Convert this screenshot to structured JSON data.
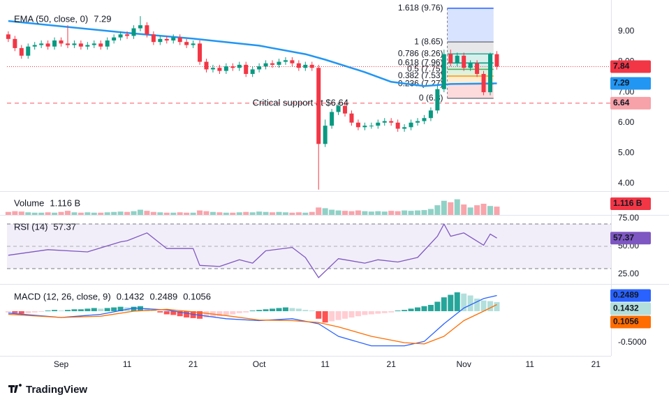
{
  "x_axis": {
    "xlim": [
      -0.2,
      91.3
    ],
    "xticks": [
      {
        "value": 8,
        "label": "Sep"
      },
      {
        "value": 18,
        "label": "11"
      },
      {
        "value": 28,
        "label": "21"
      },
      {
        "value": 38,
        "label": "Oct"
      },
      {
        "value": 48,
        "label": "11"
      },
      {
        "value": 58,
        "label": "21"
      },
      {
        "value": 69,
        "label": "Nov"
      },
      {
        "value": 79,
        "label": "11"
      },
      {
        "value": 89,
        "label": "21"
      }
    ]
  },
  "brand": "TradingView",
  "chart_data": [
    {
      "type": "candlestick",
      "x": [
        0,
        1,
        2,
        3,
        4,
        5,
        6,
        7,
        8,
        9,
        10,
        11,
        12,
        13,
        14,
        15,
        16,
        17,
        18,
        19,
        20,
        21,
        22,
        23,
        24,
        25,
        26,
        27,
        28,
        29,
        30,
        31,
        32,
        33,
        34,
        35,
        36,
        37,
        38,
        39,
        40,
        41,
        42,
        43,
        44,
        45,
        46,
        47,
        48,
        49,
        50,
        51,
        52,
        53,
        54,
        55,
        56,
        57,
        58,
        59,
        60,
        61,
        62,
        63,
        64,
        65,
        66,
        67,
        68,
        69,
        70,
        71,
        72,
        73,
        74
      ],
      "open": [
        8.9,
        8.75,
        8.45,
        8.2,
        8.5,
        8.55,
        8.6,
        8.5,
        8.7,
        8.6,
        8.55,
        8.6,
        8.5,
        8.55,
        8.6,
        8.5,
        8.7,
        8.8,
        8.9,
        8.85,
        9.1,
        9.2,
        8.9,
        8.65,
        8.75,
        8.7,
        8.8,
        8.65,
        8.55,
        8.6,
        8.0,
        7.75,
        7.8,
        7.7,
        7.85,
        7.8,
        7.9,
        7.6,
        7.75,
        7.85,
        7.95,
        7.9,
        8.0,
        8.05,
        7.95,
        7.8,
        7.9,
        7.8,
        5.3,
        5.9,
        6.35,
        6.55,
        6.3,
        6.0,
        5.85,
        5.9,
        5.9,
        6.0,
        6.05,
        6.0,
        5.8,
        5.85,
        6.0,
        6.05,
        6.15,
        6.4,
        7.1,
        8.25,
        7.95,
        8.2,
        7.8,
        7.95,
        7.6,
        7.0,
        8.25
      ],
      "high": [
        9.0,
        8.85,
        8.55,
        8.6,
        8.65,
        8.7,
        8.7,
        8.8,
        8.8,
        9.2,
        8.7,
        8.7,
        8.65,
        8.7,
        8.7,
        8.8,
        8.9,
        9.0,
        9.0,
        9.2,
        9.5,
        9.3,
        9.0,
        8.85,
        8.85,
        8.9,
        8.9,
        8.75,
        8.7,
        8.7,
        8.1,
        7.9,
        7.9,
        7.95,
        7.95,
        8.0,
        8.0,
        7.85,
        7.95,
        8.05,
        8.05,
        8.1,
        8.15,
        8.15,
        8.05,
        8.0,
        8.0,
        7.9,
        6.1,
        6.45,
        6.65,
        6.65,
        6.4,
        6.1,
        6.0,
        6.0,
        6.1,
        6.15,
        6.15,
        6.1,
        5.95,
        6.1,
        6.15,
        6.25,
        6.5,
        7.2,
        8.4,
        8.4,
        8.3,
        8.3,
        8.05,
        8.05,
        7.7,
        8.3,
        8.35
      ],
      "low": [
        8.65,
        8.35,
        8.1,
        8.1,
        8.4,
        8.45,
        8.4,
        8.4,
        8.5,
        8.45,
        8.45,
        8.4,
        8.4,
        8.45,
        8.4,
        8.4,
        8.6,
        8.7,
        8.75,
        8.75,
        9.0,
        8.8,
        8.55,
        8.55,
        8.6,
        8.6,
        8.55,
        8.45,
        8.45,
        7.9,
        7.65,
        7.65,
        7.6,
        7.6,
        7.7,
        7.7,
        7.5,
        7.5,
        7.65,
        7.75,
        7.8,
        7.8,
        7.9,
        7.85,
        7.7,
        7.7,
        7.7,
        3.8,
        5.2,
        5.8,
        6.25,
        6.2,
        5.9,
        5.75,
        5.75,
        5.8,
        5.8,
        5.9,
        5.9,
        5.7,
        5.7,
        5.75,
        5.9,
        5.95,
        6.05,
        6.3,
        7.0,
        7.85,
        7.85,
        7.7,
        7.7,
        7.5,
        6.9,
        6.9,
        7.74
      ],
      "close": [
        8.75,
        8.45,
        8.2,
        8.5,
        8.55,
        8.6,
        8.5,
        8.7,
        8.6,
        8.55,
        8.6,
        8.5,
        8.55,
        8.6,
        8.5,
        8.7,
        8.8,
        8.9,
        8.85,
        9.1,
        9.2,
        8.9,
        8.65,
        8.75,
        8.7,
        8.8,
        8.65,
        8.55,
        8.6,
        8.0,
        7.75,
        7.8,
        7.7,
        7.85,
        7.8,
        7.9,
        7.6,
        7.75,
        7.85,
        7.95,
        7.9,
        8.0,
        8.05,
        7.95,
        7.8,
        7.9,
        7.8,
        5.3,
        5.9,
        6.35,
        6.55,
        6.3,
        6.0,
        5.85,
        5.9,
        5.9,
        6.0,
        6.05,
        6.0,
        5.8,
        5.85,
        6.0,
        6.05,
        6.15,
        6.4,
        7.1,
        8.25,
        7.95,
        8.2,
        7.8,
        7.95,
        7.6,
        7.0,
        8.25,
        7.84
      ],
      "up_color": "#089981",
      "down_color": "#f23645",
      "ema": {
        "name": "EMA (50, close, 0)",
        "color": "#2196f3",
        "x": [
          0,
          18,
          28,
          38,
          45,
          48,
          54,
          58,
          63,
          67,
          74
        ],
        "values": [
          9.34,
          8.95,
          8.76,
          8.53,
          8.25,
          8.07,
          7.66,
          7.34,
          7.2,
          7.27,
          7.29
        ]
      },
      "ylim": [
        3.77,
        10.03
      ],
      "yticks": [
        {
          "value": 4,
          "label": "4.00"
        },
        {
          "value": 5,
          "label": "5.00"
        },
        {
          "value": 6,
          "label": "6.00"
        },
        {
          "value": 7,
          "label": "7.00"
        },
        {
          "value": 8,
          "label": "8.00"
        },
        {
          "value": 9,
          "label": "9.00"
        }
      ],
      "support": {
        "value": 6.64,
        "color": "#f7525f",
        "label": "Critical support at $6.64",
        "label_color": "#2962ff"
      },
      "fib_x": [
        66.5,
        73.5
      ],
      "fib_levels": [
        {
          "label": "1.618 (9.76)",
          "value": 9.76,
          "color": "#2962ff"
        },
        {
          "label": "1 (8.65)",
          "value": 8.65,
          "color": "#787b86"
        },
        {
          "label": "0.786 (8.26)",
          "value": 8.26,
          "color": "#22ab94"
        },
        {
          "label": "0.618 (7.96)",
          "value": 7.96,
          "color": "#089981"
        },
        {
          "label": "0.5 (7.75)",
          "value": 7.75,
          "color": "#4caf50"
        },
        {
          "label": "0.382 (7.53)",
          "value": 7.53,
          "color": "#ff9800"
        },
        {
          "label": "0.236 (7.27)",
          "value": 7.27,
          "color": "#f23645"
        },
        {
          "label": "0 (6.8)",
          "value": 6.8,
          "color": "#787b86"
        }
      ]
    },
    {
      "type": "bar",
      "name": "Volume",
      "values": [
        0.4,
        0.5,
        0.45,
        0.35,
        0.3,
        0.3,
        0.35,
        0.3,
        0.4,
        0.55,
        0.35,
        0.3,
        0.35,
        0.3,
        0.3,
        0.35,
        0.4,
        0.45,
        0.4,
        0.5,
        0.7,
        0.55,
        0.4,
        0.35,
        0.3,
        0.3,
        0.35,
        0.3,
        0.3,
        0.6,
        0.5,
        0.4,
        0.35,
        0.3,
        0.3,
        0.35,
        0.4,
        0.35,
        0.45,
        0.4,
        0.35,
        0.4,
        0.35,
        0.3,
        0.35,
        0.3,
        0.4,
        1.0,
        0.9,
        0.7,
        0.6,
        0.55,
        0.5,
        0.6,
        0.5,
        0.45,
        0.5,
        0.45,
        0.55,
        0.5,
        0.6,
        0.55,
        0.6,
        0.65,
        0.8,
        1.3,
        1.9,
        1.7,
        2.1,
        1.4,
        1.0,
        1.3,
        1.5,
        1.2,
        1.116
      ],
      "current_label": "1.116 B",
      "ylim": [
        0,
        3.0
      ]
    },
    {
      "type": "line",
      "name": "RSI (14)",
      "color": "#7e57c2",
      "x": [
        0,
        6,
        12,
        17,
        18,
        21,
        24,
        28,
        29,
        32,
        35,
        37,
        39,
        43,
        45,
        47,
        50,
        54,
        56,
        59,
        62,
        65,
        66,
        67,
        69,
        72,
        73,
        74
      ],
      "values": [
        42,
        47,
        45,
        54,
        55,
        62,
        48,
        48,
        33,
        32,
        38,
        35,
        46,
        49,
        40,
        22,
        39,
        35,
        38,
        36,
        40,
        59,
        70,
        59,
        62,
        51,
        61,
        57.37
      ],
      "ylim": [
        16.3,
        77.5
      ],
      "yticks": [
        {
          "value": 25,
          "label": "25.00"
        },
        {
          "value": 50,
          "label": "50.00"
        },
        {
          "value": 75,
          "label": "75.00"
        }
      ],
      "bands": [
        30,
        70
      ],
      "midline": 50,
      "band_color": "#7e57c2"
    },
    {
      "type": "macd",
      "name": "MACD (12, 26, close, 9)",
      "histogram": {
        "values": [
          -0.02,
          -0.03,
          -0.04,
          -0.03,
          -0.02,
          -0.01,
          0.01,
          0.02,
          0.01,
          0.02,
          0.03,
          0.03,
          0.04,
          0.05,
          0.04,
          0.05,
          0.06,
          0.07,
          0.06,
          0.07,
          0.08,
          0.05,
          0.02,
          -0.02,
          -0.05,
          -0.06,
          -0.08,
          -0.1,
          -0.11,
          -0.12,
          -0.1,
          -0.09,
          -0.08,
          -0.06,
          -0.05,
          -0.03,
          -0.02,
          0.01,
          0.02,
          0.03,
          0.04,
          0.05,
          0.06,
          0.05,
          0.04,
          0.02,
          0.01,
          -0.12,
          -0.18,
          -0.16,
          -0.14,
          -0.12,
          -0.1,
          -0.08,
          -0.06,
          -0.05,
          -0.04,
          -0.03,
          -0.02,
          0.01,
          0.02,
          0.04,
          0.06,
          0.08,
          0.1,
          0.15,
          0.22,
          0.26,
          0.3,
          0.28,
          0.25,
          0.2,
          0.17,
          0.16,
          0.1432
        ],
        "colors": {
          "rising_positive": "#26a69a",
          "falling_positive": "#b2dfdb",
          "falling_negative": "#ff5252",
          "rising_negative": "#ffcdd2"
        }
      },
      "series": [
        {
          "color": "#2962ff",
          "x": [
            0,
            8,
            14,
            19,
            24,
            28,
            33,
            38,
            43,
            47,
            50,
            55,
            60,
            63,
            66,
            69,
            72,
            74
          ],
          "values": [
            -0.03,
            -0.1,
            -0.05,
            0.05,
            0.02,
            -0.05,
            -0.12,
            -0.15,
            -0.12,
            -0.2,
            -0.4,
            -0.55,
            -0.55,
            -0.48,
            -0.2,
            0.05,
            0.2,
            0.2489
          ]
        },
        {
          "color": "#ff6d00",
          "x": [
            0,
            8,
            14,
            19,
            24,
            28,
            33,
            38,
            43,
            47,
            50,
            55,
            60,
            63,
            66,
            69,
            72,
            74
          ],
          "values": [
            -0.05,
            -0.1,
            -0.08,
            0.0,
            0.03,
            -0.01,
            -0.07,
            -0.14,
            -0.15,
            -0.18,
            -0.25,
            -0.4,
            -0.5,
            -0.52,
            -0.4,
            -0.15,
            0.0,
            0.1056
          ]
        }
      ],
      "ylim": [
        -0.71,
        0.41
      ],
      "yticks": [
        {
          "value": -0.5,
          "label": "-0.5000"
        }
      ]
    }
  ]
}
